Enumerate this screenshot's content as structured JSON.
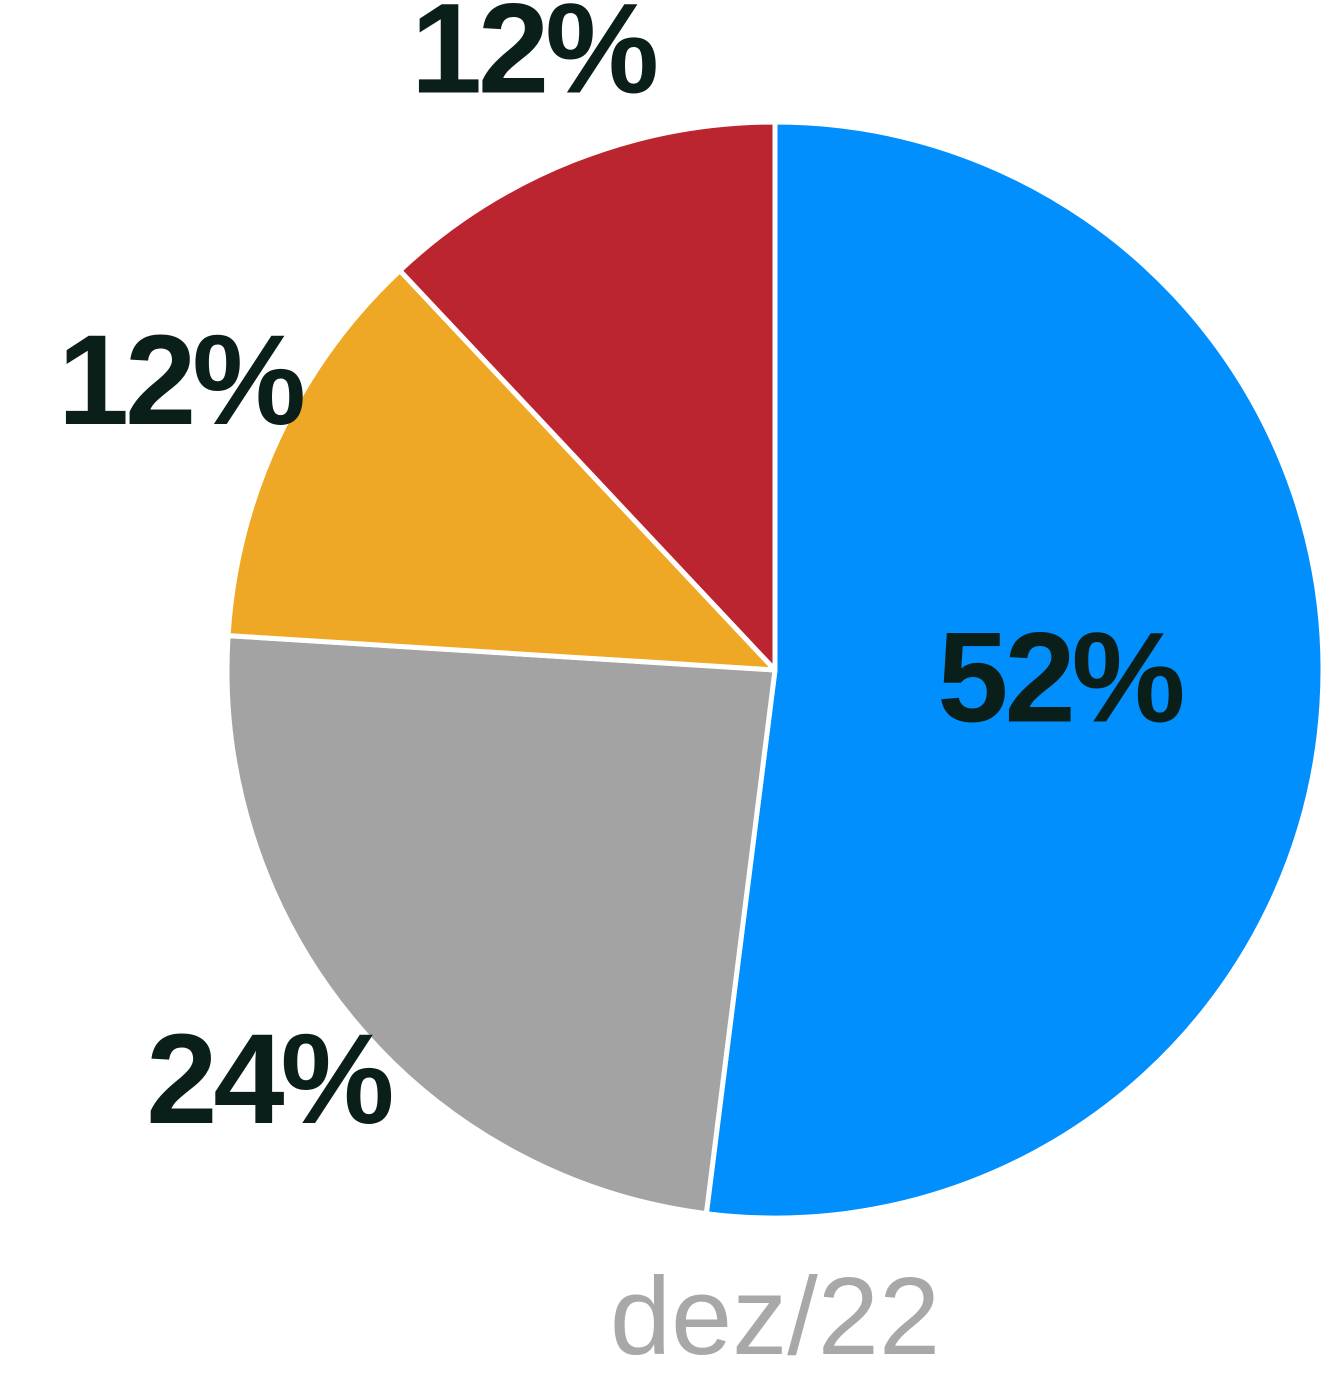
{
  "chart_data": {
    "type": "pie",
    "values": [
      52,
      24,
      12,
      12
    ],
    "value_labels": [
      "52%",
      "24%",
      "12%",
      "12%"
    ],
    "colors": [
      "#028ffe",
      "#a3a3a3",
      "#efa825",
      "#bb2530"
    ],
    "caption": "dez/22"
  }
}
